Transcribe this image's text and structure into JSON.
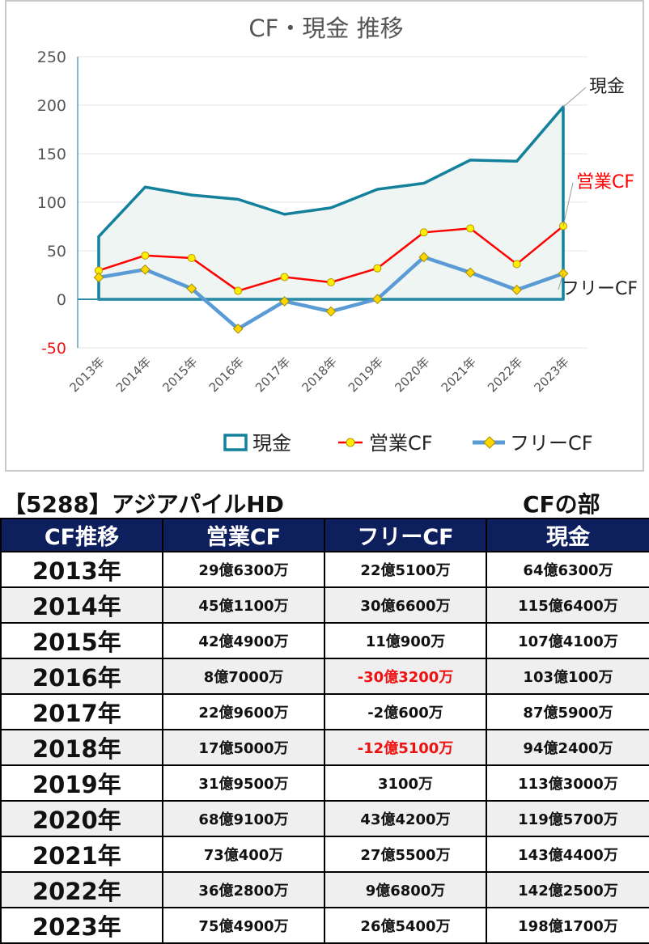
{
  "chart_data": {
    "type": "line",
    "title": "CF・現金 推移",
    "categories": [
      "2013年",
      "2014年",
      "2015年",
      "2016年",
      "2017年",
      "2018年",
      "2019年",
      "2020年",
      "2021年",
      "2022年",
      "2023年"
    ],
    "ylim": [
      -50,
      250
    ],
    "yticks": [
      "250",
      "200",
      "150",
      "100",
      "50",
      "0",
      "-50"
    ],
    "ytick_values": [
      250,
      200,
      150,
      100,
      50,
      0,
      -50
    ],
    "grid": true,
    "legend_position": "bottom",
    "series": [
      {
        "name": "現金",
        "color": "#13809c",
        "style": "line-area",
        "values": [
          64.63,
          115.64,
          107.41,
          103.01,
          87.59,
          94.24,
          113.3,
          119.57,
          143.44,
          142.25,
          198.17
        ]
      },
      {
        "name": "営業CF",
        "color": "#ff0000",
        "marker_color": "#ffee00",
        "style": "line-marker",
        "values": [
          29.63,
          45.11,
          42.49,
          8.7,
          22.96,
          17.5,
          31.95,
          68.91,
          73.04,
          36.28,
          75.49
        ]
      },
      {
        "name": "フリーCF",
        "color": "#5b9bd5",
        "marker_color": "#ffd700",
        "style": "line-marker",
        "values": [
          22.51,
          30.66,
          11.09,
          -30.32,
          -2.06,
          -12.51,
          0.31,
          43.42,
          27.55,
          9.68,
          26.54
        ]
      }
    ],
    "end_labels": [
      "現金",
      "営業CF",
      "フリーCF"
    ],
    "colors": {
      "axis": "#2a8ca8",
      "grid": "#e6e6e6",
      "negative_tick": "#ee1111",
      "tick": "#555555",
      "area_fill": "#eef5f3"
    }
  },
  "page": {
    "company_title": "【5288】アジアパイルHD",
    "section_title": "CFの部"
  },
  "table": {
    "headers": [
      "CF推移",
      "営業CF",
      "フリーCF",
      "現金"
    ],
    "rows": [
      {
        "year": "2013年",
        "op": "29億6300万",
        "free": "22億5100万",
        "cash": "64億6300万"
      },
      {
        "year": "2014年",
        "op": "45億1100万",
        "free": "30億6600万",
        "cash": "115億6400万"
      },
      {
        "year": "2015年",
        "op": "42億4900万",
        "free": "11億900万",
        "cash": "107億4100万"
      },
      {
        "year": "2016年",
        "op": "8億7000万",
        "free": "-30億3200万",
        "cash": "103億100万",
        "free_negative": true
      },
      {
        "year": "2017年",
        "op": "22億9600万",
        "free": "-2億600万",
        "cash": "87億5900万"
      },
      {
        "year": "2018年",
        "op": "17億5000万",
        "free": "-12億5100万",
        "cash": "94億2400万",
        "free_negative": true
      },
      {
        "year": "2019年",
        "op": "31億9500万",
        "free": "3100万",
        "cash": "113億3000万"
      },
      {
        "year": "2020年",
        "op": "68億9100万",
        "free": "43億4200万",
        "cash": "119億5700万"
      },
      {
        "year": "2021年",
        "op": "73億400万",
        "free": "27億5500万",
        "cash": "143億4400万"
      },
      {
        "year": "2022年",
        "op": "36億2800万",
        "free": "9億6800万",
        "cash": "142億2500万"
      },
      {
        "year": "2023年",
        "op": "75億4900万",
        "free": "26億5400万",
        "cash": "198億1700万"
      }
    ]
  }
}
